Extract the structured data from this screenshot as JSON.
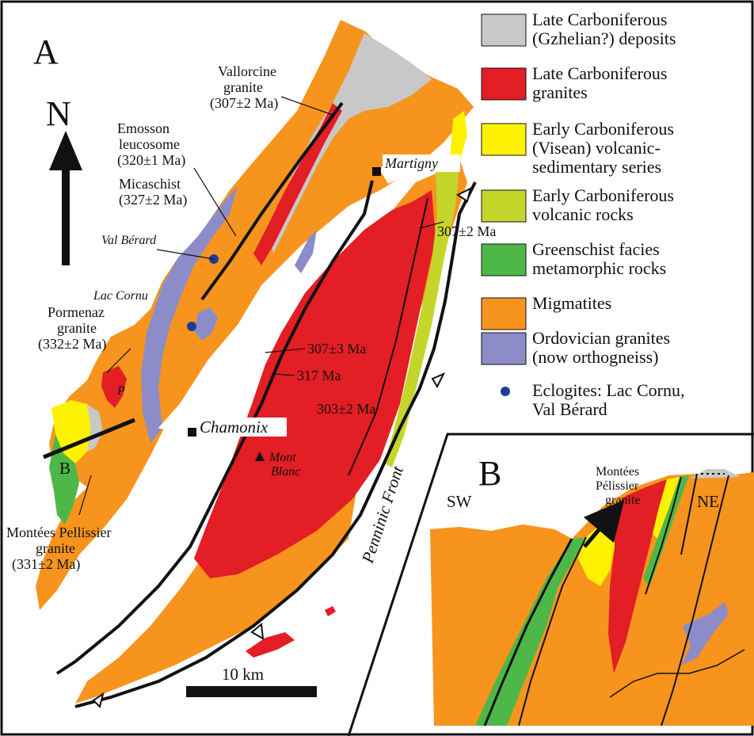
{
  "panel_a": {
    "letter": "A",
    "north": "N",
    "scale": "10 km",
    "section_letter": "B",
    "front_label": "Penninic Front",
    "towns": {
      "martigny": "Martigny",
      "chamonix": "Chamonix"
    },
    "peak": [
      "Mont",
      "Blanc"
    ],
    "sites": {
      "val_berard": "Val Bérard",
      "lac_cornu": "Lac Cornu",
      "p": "P"
    },
    "annotations": {
      "vallorcine": [
        "Vallorcine",
        "granite",
        "(307±2 Ma)"
      ],
      "emosson": [
        "Emosson",
        "leucosome",
        "(320±1 Ma)"
      ],
      "micaschist": [
        "Micaschist",
        "(327±2 Ma)"
      ],
      "pormenaz": [
        "Pormenaz",
        "granite",
        "(332±2 Ma)"
      ],
      "montees": [
        "Montées Pellissier",
        "granite",
        "(331±2 Ma)"
      ],
      "age_307_2": "307±2 Ma",
      "age_307_3": "307±3 Ma",
      "age_317": "317 Ma",
      "age_303": "303±2 Ma"
    }
  },
  "panel_b": {
    "letter": "B",
    "sw": "SW",
    "ne": "NE",
    "label": [
      "Montées",
      "Pélissier",
      "granite"
    ]
  },
  "legend": [
    {
      "color": "#c8c8c8",
      "lines": [
        "Late Carboniferous",
        "(Gzhelian?) deposits"
      ]
    },
    {
      "color": "#e31e24",
      "lines": [
        "Late Carboniferous",
        "granites"
      ]
    },
    {
      "color": "#fff200",
      "lines": [
        "Early Carboniferous",
        "(Visean) volcanic-",
        "sedimentary series"
      ]
    },
    {
      "color": "#c5d62a",
      "lines": [
        "Early Carboniferous",
        "volcanic rocks"
      ]
    },
    {
      "color": "#4db848",
      "lines": [
        "Greenschist facies",
        "metamorphic rocks"
      ]
    },
    {
      "color": "#f7941d",
      "lines": [
        "Migmatites"
      ]
    },
    {
      "color": "#8c8cc8",
      "lines": [
        "Ordovician granites",
        "(now orthogneiss)"
      ]
    },
    {
      "color": "#1c3f94",
      "dot": true,
      "lines": [
        "Eclogites: Lac Cornu,",
        "Val Bérard"
      ]
    }
  ]
}
